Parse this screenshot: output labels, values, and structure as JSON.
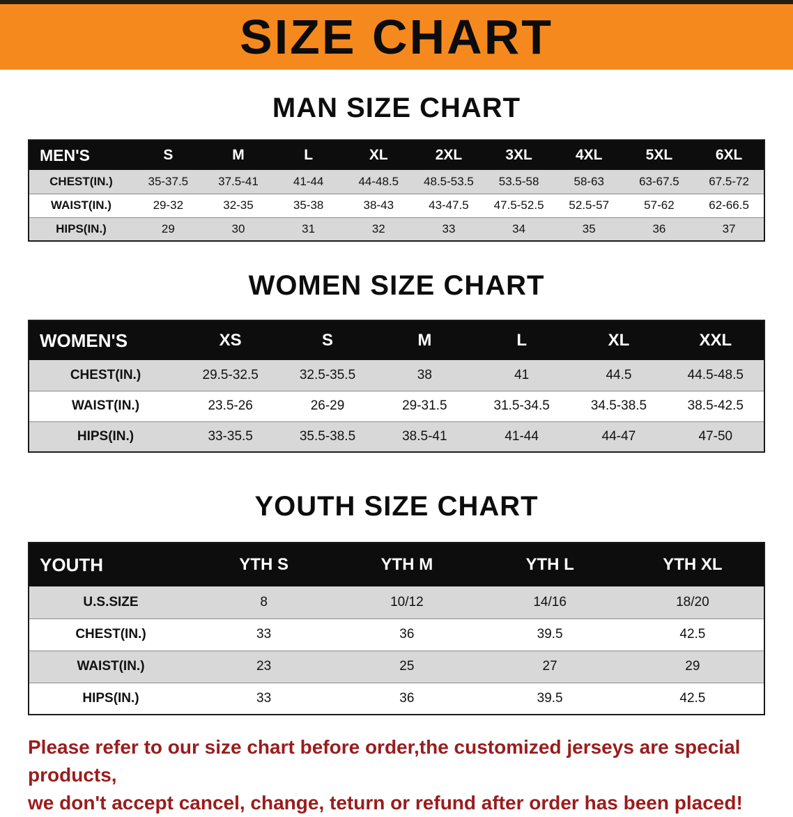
{
  "banner": {
    "title": "SIZE CHART",
    "bg_color": "#f6891e",
    "text_color": "#0c0c0c"
  },
  "colors": {
    "table_header_bg": "#0d0d0d",
    "table_header_text": "#ffffff",
    "stripe_row_bg": "#d8d8d8",
    "disclaimer_text": "#9b1c1c"
  },
  "sections": [
    {
      "heading": "MAN SIZE CHART",
      "table": {
        "header": [
          "MEN'S",
          "S",
          "M",
          "L",
          "XL",
          "2XL",
          "3XL",
          "4XL",
          "5XL",
          "6XL"
        ],
        "rows": [
          [
            "CHEST(IN.)",
            "35-37.5",
            "37.5-41",
            "41-44",
            "44-48.5",
            "48.5-53.5",
            "53.5-58",
            "58-63",
            "63-67.5",
            "67.5-72"
          ],
          [
            "WAIST(IN.)",
            "29-32",
            "32-35",
            "35-38",
            "38-43",
            "43-47.5",
            "47.5-52.5",
            "52.5-57",
            "57-62",
            "62-66.5"
          ],
          [
            "HIPS(IN.)",
            "29",
            "30",
            "31",
            "32",
            "33",
            "34",
            "35",
            "36",
            "37"
          ]
        ]
      }
    },
    {
      "heading": "WOMEN SIZE CHART",
      "table": {
        "header": [
          "WOMEN'S",
          "XS",
          "S",
          "M",
          "L",
          "XL",
          "XXL"
        ],
        "rows": [
          [
            "CHEST(IN.)",
            "29.5-32.5",
            "32.5-35.5",
            "38",
            "41",
            "44.5",
            "44.5-48.5"
          ],
          [
            "WAIST(IN.)",
            "23.5-26",
            "26-29",
            "29-31.5",
            "31.5-34.5",
            "34.5-38.5",
            "38.5-42.5"
          ],
          [
            "HIPS(IN.)",
            "33-35.5",
            "35.5-38.5",
            "38.5-41",
            "41-44",
            "44-47",
            "47-50"
          ]
        ]
      }
    },
    {
      "heading": "YOUTH SIZE CHART",
      "table": {
        "header": [
          "YOUTH",
          "YTH S",
          "YTH M",
          "YTH L",
          "YTH XL"
        ],
        "rows": [
          [
            "U.S.SIZE",
            "8",
            "10/12",
            "14/16",
            "18/20"
          ],
          [
            "CHEST(IN.)",
            "33",
            "36",
            "39.5",
            "42.5"
          ],
          [
            "WAIST(IN.)",
            "23",
            "25",
            "27",
            "29"
          ],
          [
            "HIPS(IN.)",
            "33",
            "36",
            "39.5",
            "42.5"
          ]
        ]
      }
    }
  ],
  "disclaimer": {
    "lines": [
      "Please refer to our size chart before order,the customized jerseys are special products,",
      "we don't accept cancel, change, teturn or refund after order has been placed!"
    ]
  }
}
